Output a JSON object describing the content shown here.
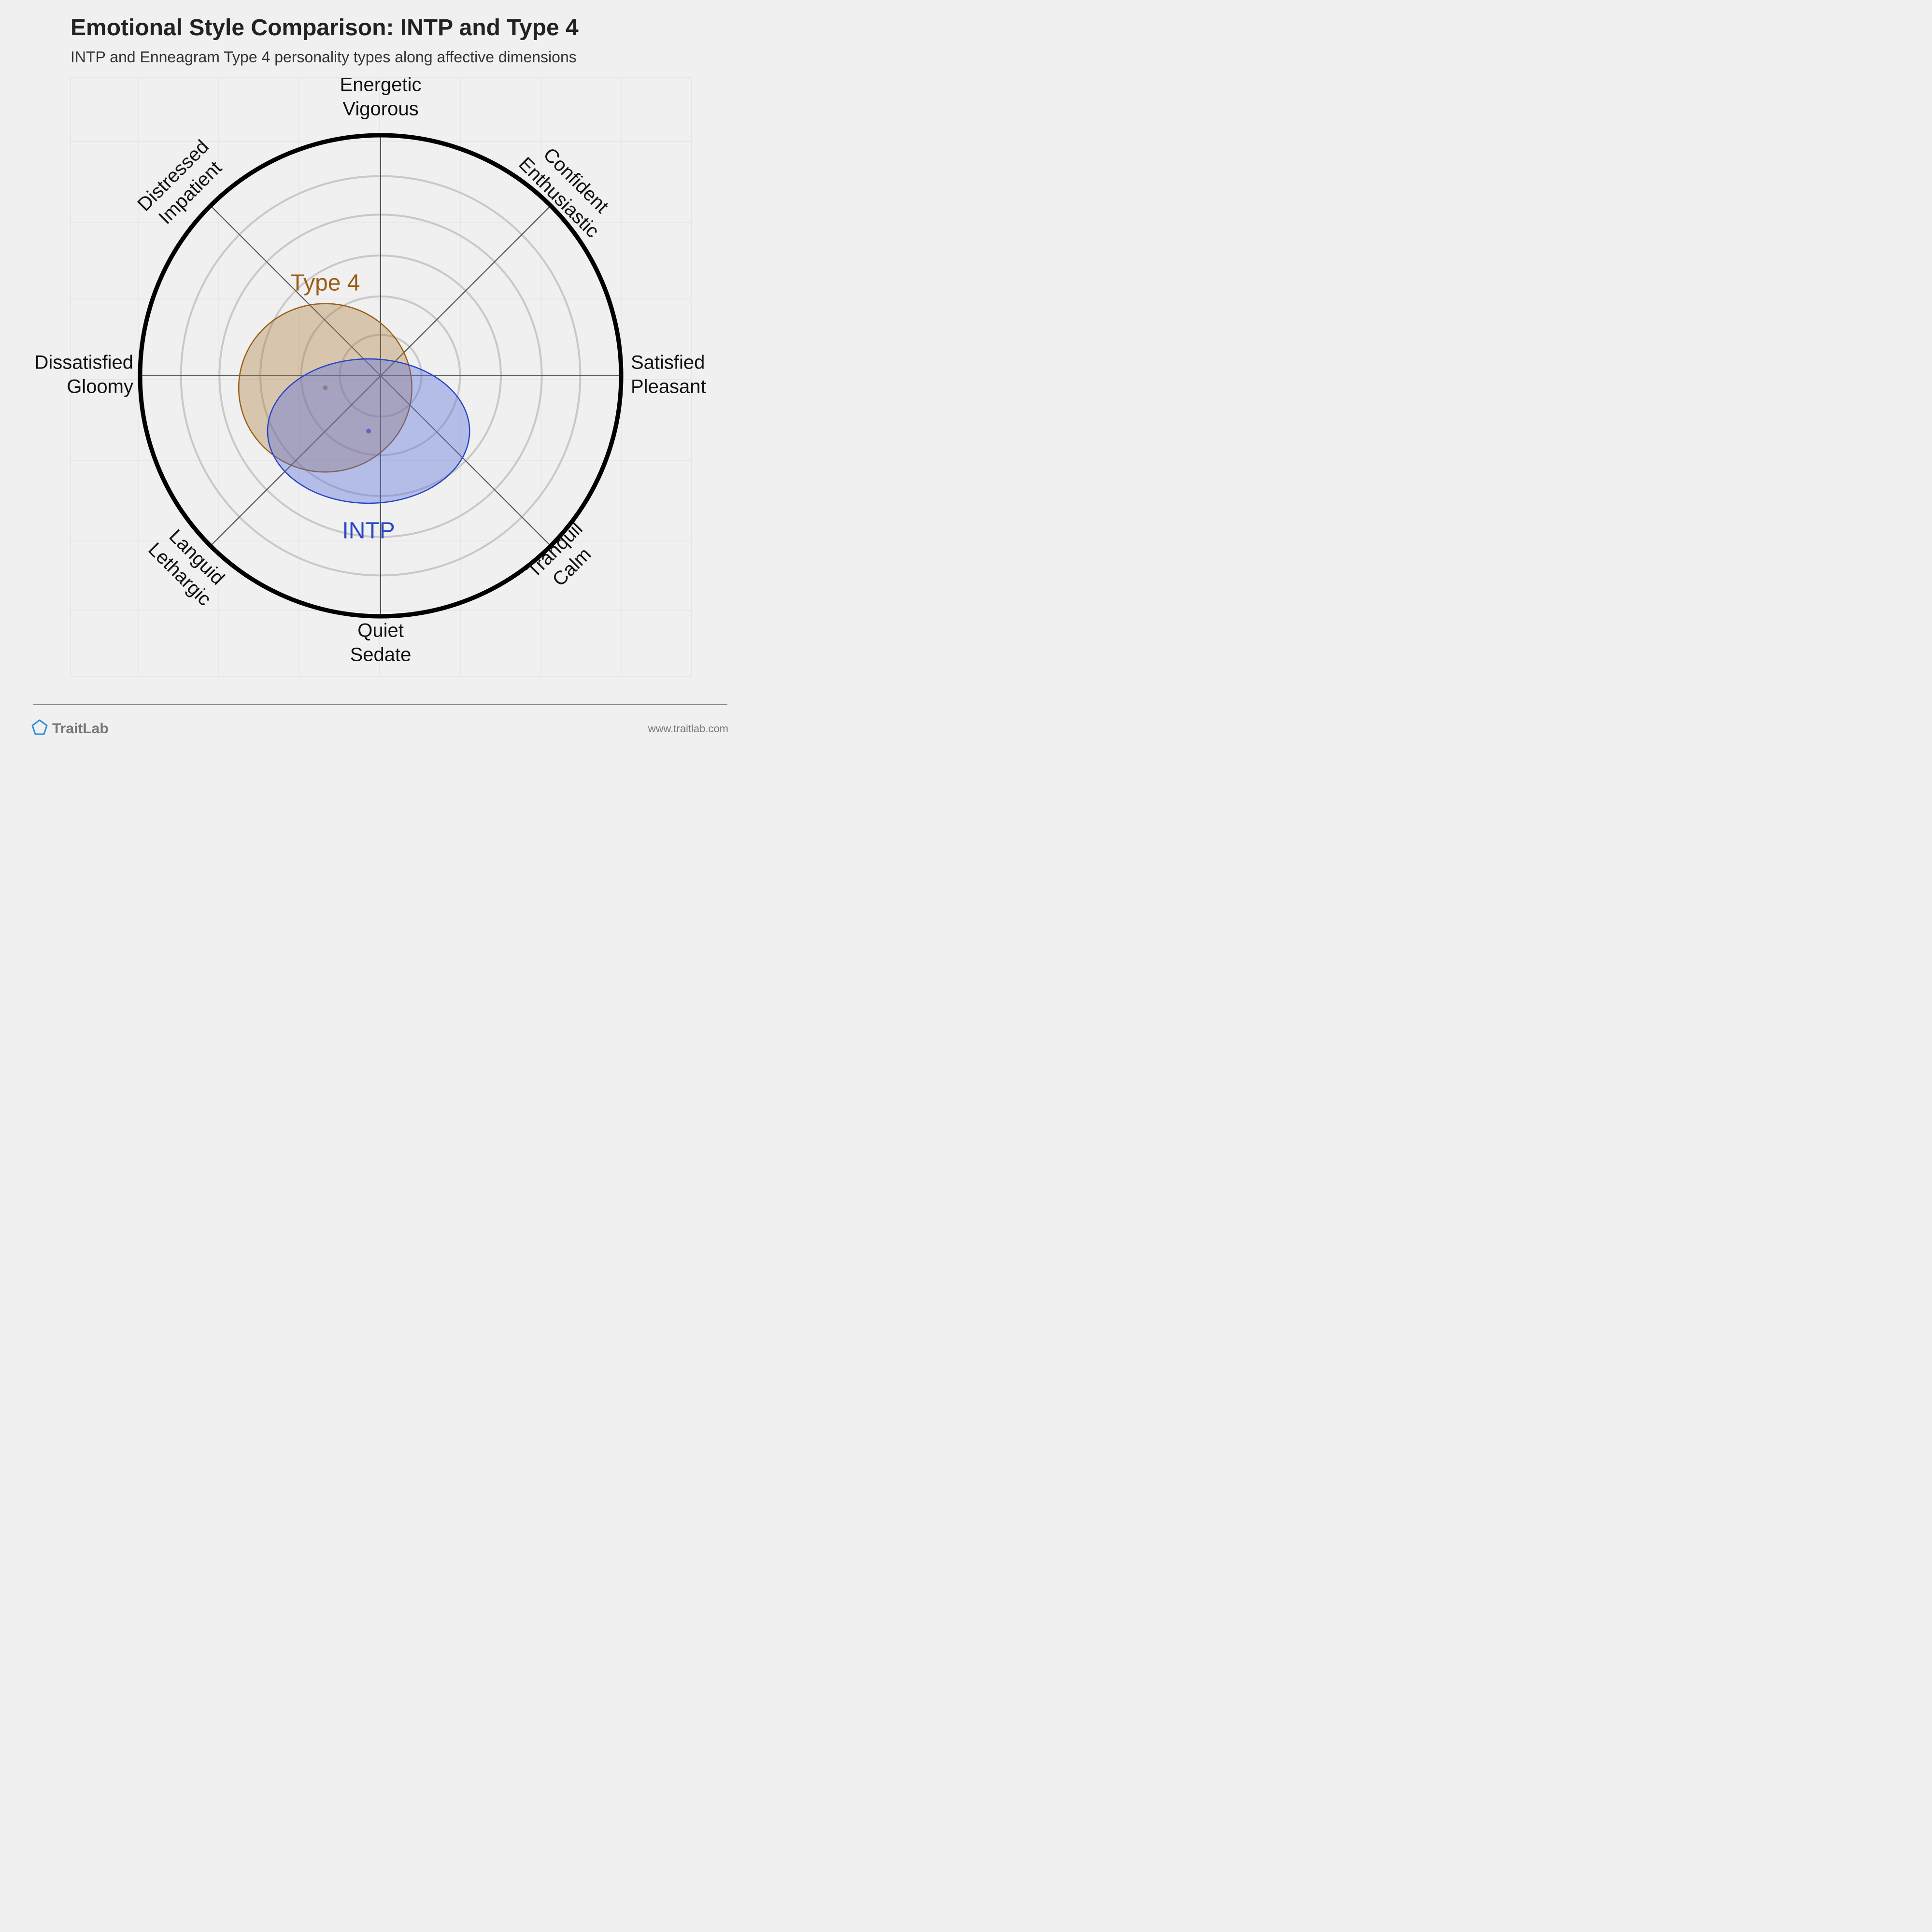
{
  "header": {
    "title": "Emotional Style Comparison: INTP and Type 4",
    "subtitle": "INTP and Enneagram Type 4 personality types along affective dimensions"
  },
  "footer": {
    "brand": "TraitLab",
    "url": "www.traitlab.com",
    "icon": "pentagon-logo-icon"
  },
  "colors": {
    "background": "#f0f0f0",
    "ring": "#c8c8c8",
    "outer_ring": "#000000",
    "axis": "#555555",
    "intp": "#3a54c8",
    "type4": "#9a5d18"
  },
  "chart_data": {
    "type": "circumplex",
    "grid": true,
    "axes": [
      {
        "angle_deg": 90,
        "lines": [
          "Energetic",
          "Vigorous"
        ]
      },
      {
        "angle_deg": 45,
        "lines": [
          "Confident",
          "Enthusiastic"
        ]
      },
      {
        "angle_deg": 0,
        "lines": [
          "Satisfied",
          "Pleasant"
        ]
      },
      {
        "angle_deg": -45,
        "lines": [
          "Tranquil",
          "Calm"
        ]
      },
      {
        "angle_deg": -90,
        "lines": [
          "Quiet",
          "Sedate"
        ]
      },
      {
        "angle_deg": -135,
        "lines": [
          "Languid",
          "Lethargic"
        ]
      },
      {
        "angle_deg": 180,
        "lines": [
          "Dissatisfied",
          "Gloomy"
        ]
      },
      {
        "angle_deg": 135,
        "lines": [
          "Distressed",
          "Impatient"
        ]
      }
    ],
    "ring_levels": [
      0.17,
      0.33,
      0.5,
      0.67,
      0.83
    ],
    "series": [
      {
        "name": "Type 4",
        "center": {
          "x": -0.23,
          "y": -0.05
        },
        "radius": {
          "x": 0.36,
          "y": 0.35
        },
        "color": "#9a5d18",
        "fill": "rgba(170,120,50,0.35)"
      },
      {
        "name": "INTP",
        "center": {
          "x": -0.05,
          "y": -0.23
        },
        "radius": {
          "x": 0.42,
          "y": 0.3
        },
        "color": "#2845c4",
        "fill": "rgba(90,110,220,0.40)"
      }
    ]
  }
}
